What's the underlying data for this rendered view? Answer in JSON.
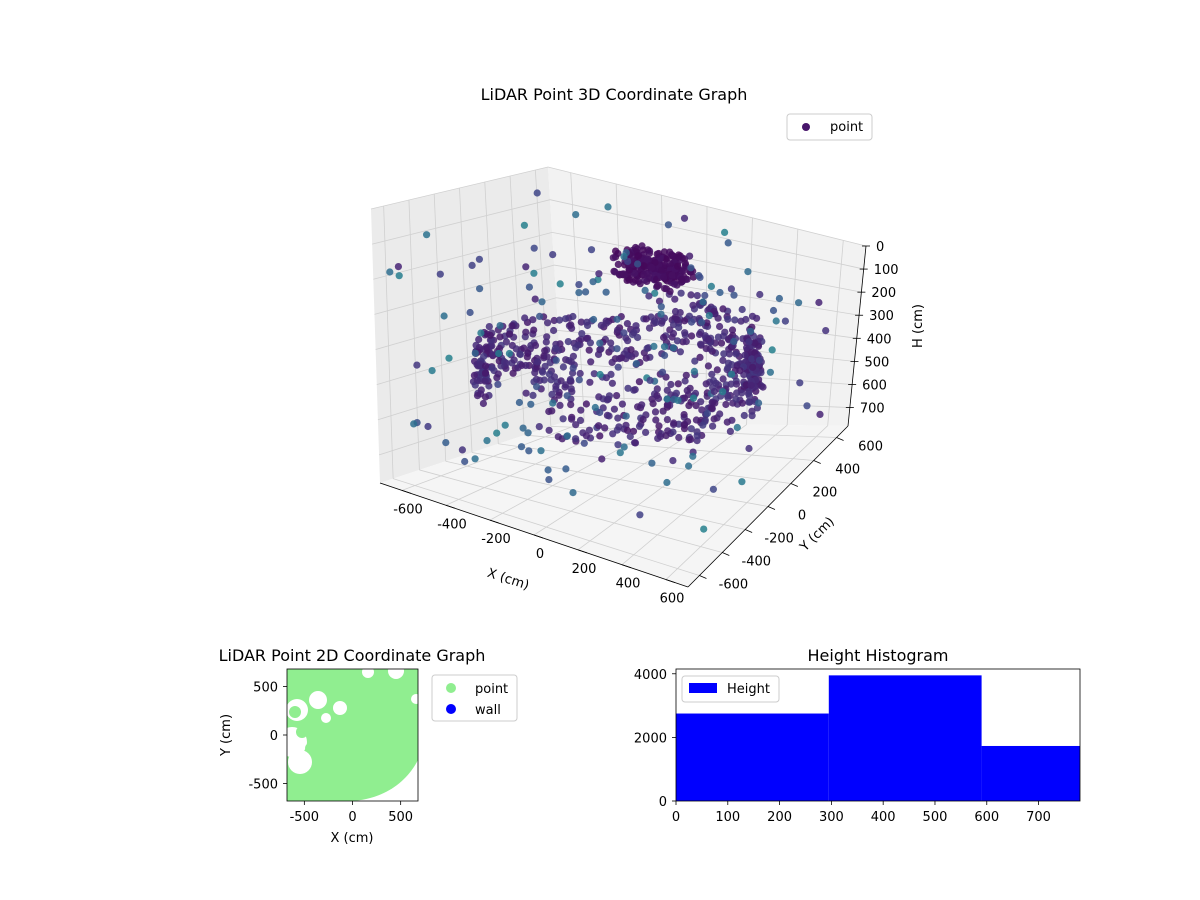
{
  "chart_data": [
    {
      "type": "scatter3d",
      "title": "LiDAR Point 3D Coordinate Graph",
      "xlabel": "X (cm)",
      "ylabel": "Y (cm)",
      "zlabel": "H (cm)",
      "xticks": [
        "-600",
        "-400",
        "-200",
        "0",
        "200",
        "400",
        "600"
      ],
      "yticks": [
        "-600",
        "-400",
        "-200",
        "0",
        "200",
        "400",
        "600"
      ],
      "zticks": [
        "0",
        "100",
        "200",
        "300",
        "400",
        "500",
        "600",
        "700"
      ],
      "xlim": [
        -700,
        700
      ],
      "ylim": [
        -700,
        700
      ],
      "zlim": [
        0,
        780
      ],
      "legend": [
        {
          "label": "point",
          "color": "#48166b"
        }
      ],
      "legend_position": "top-right",
      "colormap": "viridis"
    },
    {
      "type": "scatter",
      "title": "LiDAR Point 2D Coordinate Graph",
      "xlabel": "X (cm)",
      "ylabel": "Y (cm)",
      "xticks": [
        "-500",
        "0",
        "500"
      ],
      "yticks": [
        "500",
        "0",
        "-500"
      ],
      "xlim": [
        -680,
        680
      ],
      "ylim": [
        -680,
        680
      ],
      "series": [
        {
          "name": "point",
          "color": "#90ee90"
        },
        {
          "name": "wall",
          "color": "#0000ff"
        }
      ],
      "legend_position": "outside-right"
    },
    {
      "type": "histogram",
      "title": "Height Histogram",
      "xticks": [
        "0",
        "100",
        "200",
        "300",
        "400",
        "500",
        "600",
        "700"
      ],
      "yticks": [
        "4000",
        "2000",
        "0"
      ],
      "xlim": [
        0,
        780
      ],
      "ylim": [
        0,
        4150
      ],
      "bins": [
        {
          "start": 0,
          "end": 295,
          "count": 2750
        },
        {
          "start": 295,
          "end": 590,
          "count": 3950
        },
        {
          "start": 590,
          "end": 780,
          "count": 1730
        }
      ],
      "legend": [
        {
          "label": "Height",
          "color": "#0000ff"
        }
      ],
      "legend_position": "top-left"
    }
  ]
}
